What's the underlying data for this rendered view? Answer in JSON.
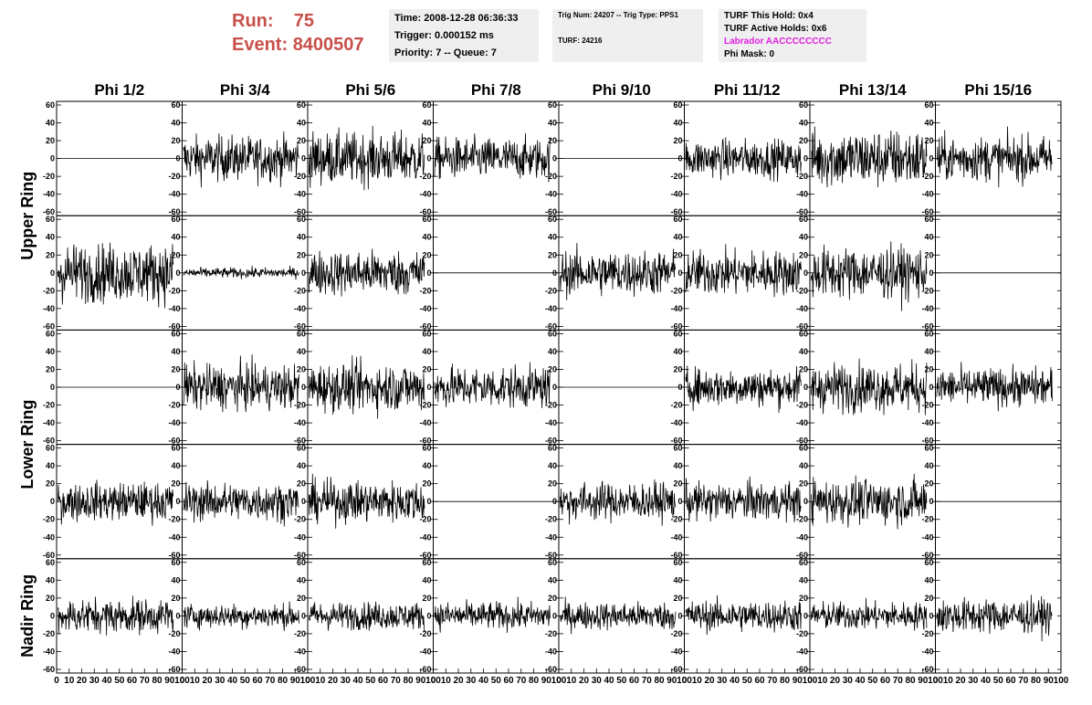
{
  "header": {
    "run_label": "Run:",
    "run_value": "75",
    "event_label": "Event:",
    "event_value": "8400507",
    "time": "Time: 2008-12-28 06:36:33",
    "trigger": "Trigger: 0.000152 ms",
    "priority": "Priority: 7 -- Queue: 7",
    "trig_num": "Trig Num: 24207 -- Trig Type: PPS1",
    "turf": "TURF: 24216",
    "turf_this_hold": "TURF This Hold: 0x4",
    "turf_active_holds": "TURF Active Holds: 0x6",
    "labrador": "Labrador AACCCCCCCC",
    "phi_mask": "Phi Mask: 0"
  },
  "colors": {
    "accent": "#c8504a",
    "labrador": "#e020e0",
    "panel_bg": "#efefef",
    "trace": "#000000"
  },
  "chart_data": {
    "type": "line",
    "columns": [
      "Phi 1/2",
      "Phi 3/4",
      "Phi 5/6",
      "Phi 7/8",
      "Phi 9/10",
      "Phi 11/12",
      "Phi 13/14",
      "Phi 15/16"
    ],
    "ring_labels": [
      {
        "label": "Upper Ring",
        "rows": [
          0,
          1
        ]
      },
      {
        "label": "Lower Ring",
        "rows": [
          2,
          3
        ]
      },
      {
        "label": "Nadir Ring",
        "rows": [
          4
        ]
      }
    ],
    "xlim": [
      0,
      100
    ],
    "ylim": [
      -60,
      60
    ],
    "x_ticks": [
      "0",
      "10",
      "20",
      "30",
      "40",
      "50",
      "60",
      "70",
      "80",
      "90",
      "100"
    ],
    "y_ticks": [
      "60",
      "40",
      "20",
      "0",
      "-20",
      "-40",
      "-60"
    ],
    "amplitude_grid": [
      [
        0,
        13,
        15,
        12,
        0,
        11,
        17,
        13
      ],
      [
        17,
        3,
        13,
        0,
        13,
        13,
        15,
        0
      ],
      [
        0,
        13,
        14,
        12,
        0,
        11,
        14,
        11
      ],
      [
        11,
        11,
        12,
        0,
        11,
        11,
        13,
        0
      ],
      [
        10,
        7,
        8,
        8,
        8,
        9,
        8,
        10
      ]
    ]
  }
}
